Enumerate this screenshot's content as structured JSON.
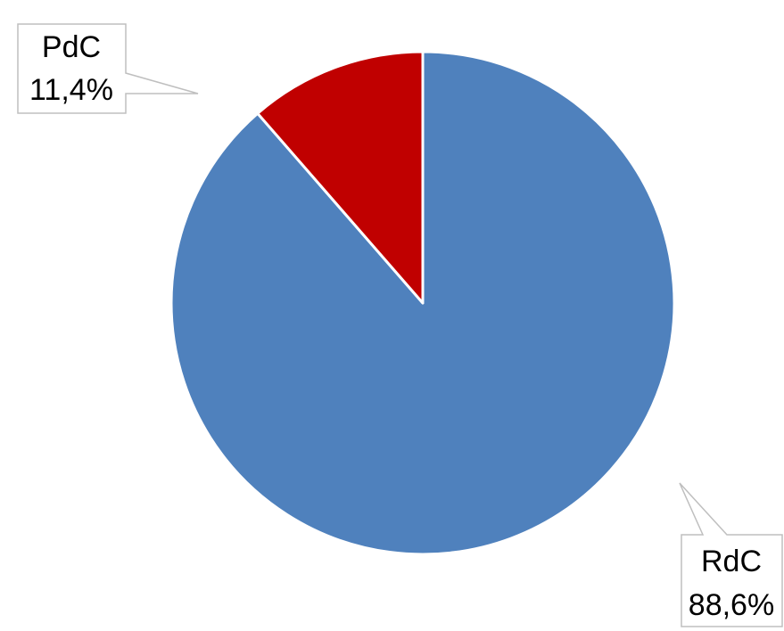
{
  "chart_data": {
    "type": "pie",
    "title": "",
    "start_angle_deg": 0,
    "direction": "clockwise",
    "slices": [
      {
        "label": "RdC",
        "value": 88.6,
        "display": "88,6%",
        "color": "#4F81BD"
      },
      {
        "label": "PdC",
        "value": 11.4,
        "display": "11,4%",
        "color": "#C00000"
      }
    ],
    "legend": "none",
    "data_labels": "callouts"
  }
}
